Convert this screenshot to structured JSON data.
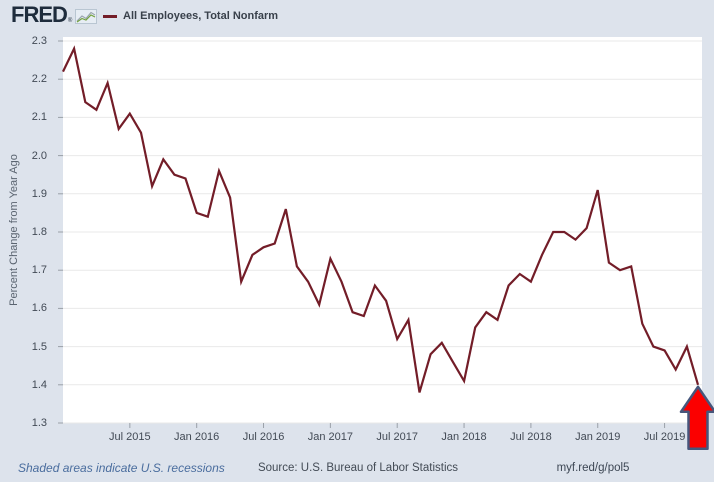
{
  "header": {
    "logo_text": "FRED",
    "logo_reg": "®",
    "series_title": "All Employees, Total Nonfarm"
  },
  "chart_data": {
    "type": "line",
    "title": "All Employees, Total Nonfarm",
    "ylabel": "Percent Change from Year Ago",
    "frequency": "monthly",
    "x": [
      "2015-01",
      "2015-02",
      "2015-03",
      "2015-04",
      "2015-05",
      "2015-06",
      "2015-07",
      "2015-08",
      "2015-09",
      "2015-10",
      "2015-11",
      "2015-12",
      "2016-01",
      "2016-02",
      "2016-03",
      "2016-04",
      "2016-05",
      "2016-06",
      "2016-07",
      "2016-08",
      "2016-09",
      "2016-10",
      "2016-11",
      "2016-12",
      "2017-01",
      "2017-02",
      "2017-03",
      "2017-04",
      "2017-05",
      "2017-06",
      "2017-07",
      "2017-08",
      "2017-09",
      "2017-10",
      "2017-11",
      "2017-12",
      "2018-01",
      "2018-02",
      "2018-03",
      "2018-04",
      "2018-05",
      "2018-06",
      "2018-07",
      "2018-08",
      "2018-09",
      "2018-10",
      "2018-11",
      "2018-12",
      "2019-01",
      "2019-02",
      "2019-03",
      "2019-04",
      "2019-05",
      "2019-06",
      "2019-07",
      "2019-08",
      "2019-09",
      "2019-10"
    ],
    "values": [
      2.22,
      2.28,
      2.14,
      2.12,
      2.19,
      2.07,
      2.11,
      2.06,
      1.92,
      1.99,
      1.95,
      1.94,
      1.85,
      1.84,
      1.96,
      1.89,
      1.67,
      1.74,
      1.76,
      1.77,
      1.86,
      1.71,
      1.67,
      1.61,
      1.73,
      1.67,
      1.59,
      1.58,
      1.66,
      1.62,
      1.52,
      1.57,
      1.38,
      1.48,
      1.51,
      1.46,
      1.41,
      1.55,
      1.59,
      1.57,
      1.66,
      1.69,
      1.67,
      1.74,
      1.8,
      1.8,
      1.78,
      1.81,
      1.91,
      1.72,
      1.7,
      1.71,
      1.56,
      1.5,
      1.49,
      1.44,
      1.5,
      1.4
    ],
    "ylim": [
      1.3,
      2.3
    ],
    "y_ticks": [
      2.3,
      2.2,
      2.1,
      2.0,
      1.9,
      1.8,
      1.7,
      1.6,
      1.5,
      1.4,
      1.3
    ],
    "x_tick_labels": [
      "Jul 2015",
      "Jan 2016",
      "Jul 2016",
      "Jan 2017",
      "Jul 2017",
      "Jan 2018",
      "Jul 2018",
      "Jan 2019",
      "Jul 2019"
    ],
    "x_tick_indices": [
      6,
      12,
      18,
      24,
      30,
      36,
      42,
      48,
      54
    ],
    "grid": true,
    "legend_position": "top",
    "annotation": {
      "shape": "up-arrow",
      "points_at": "last-point"
    }
  },
  "footer": {
    "recessions_note": "Shaded areas indicate U.S. recessions",
    "source": "Source: U.S. Bureau of Labor Statistics",
    "short_url": "myf.red/g/pol5"
  },
  "colors": {
    "background": "#dde3ec",
    "plot_background": "#ffffff",
    "line": "#731d28",
    "grid": "#e9e9e9",
    "tick": "#9aa0a8",
    "arrow_fill": "#fb0000",
    "arrow_stroke": "#46567c",
    "link": "#4a6d9e"
  }
}
